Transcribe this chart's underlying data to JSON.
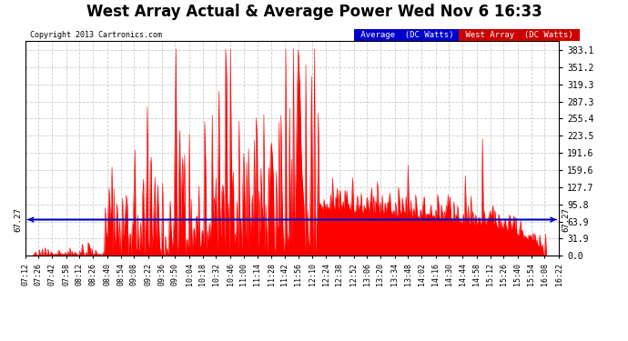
{
  "title": "West Array Actual & Average Power Wed Nov 6 16:33",
  "copyright": "Copyright 2013 Cartronics.com",
  "average_value": 67.27,
  "y_ticks": [
    0.0,
    31.9,
    63.9,
    95.8,
    127.7,
    159.6,
    191.6,
    223.5,
    255.4,
    287.3,
    319.3,
    351.2,
    383.1
  ],
  "y_max": 400,
  "background_color": "#ffffff",
  "plot_bg_color": "#ffffff",
  "grid_color": "#cccccc",
  "fill_color": "#ff0000",
  "line_color": "#ff0000",
  "avg_line_color": "#0000bb",
  "title_fontsize": 12,
  "legend_labels": [
    "Average  (DC Watts)",
    "West Array  (DC Watts)"
  ],
  "legend_bg_colors": [
    "#0000cc",
    "#cc0000"
  ],
  "x_labels": [
    "07:12",
    "07:26",
    "07:42",
    "07:58",
    "08:12",
    "08:26",
    "08:40",
    "08:54",
    "09:08",
    "09:22",
    "09:36",
    "09:50",
    "10:04",
    "10:18",
    "10:32",
    "10:46",
    "11:00",
    "11:14",
    "11:28",
    "11:42",
    "11:56",
    "12:10",
    "12:24",
    "12:38",
    "12:52",
    "13:06",
    "13:20",
    "13:34",
    "13:48",
    "14:02",
    "14:16",
    "14:30",
    "14:44",
    "14:58",
    "15:12",
    "15:26",
    "15:40",
    "15:54",
    "16:08",
    "16:22"
  ]
}
